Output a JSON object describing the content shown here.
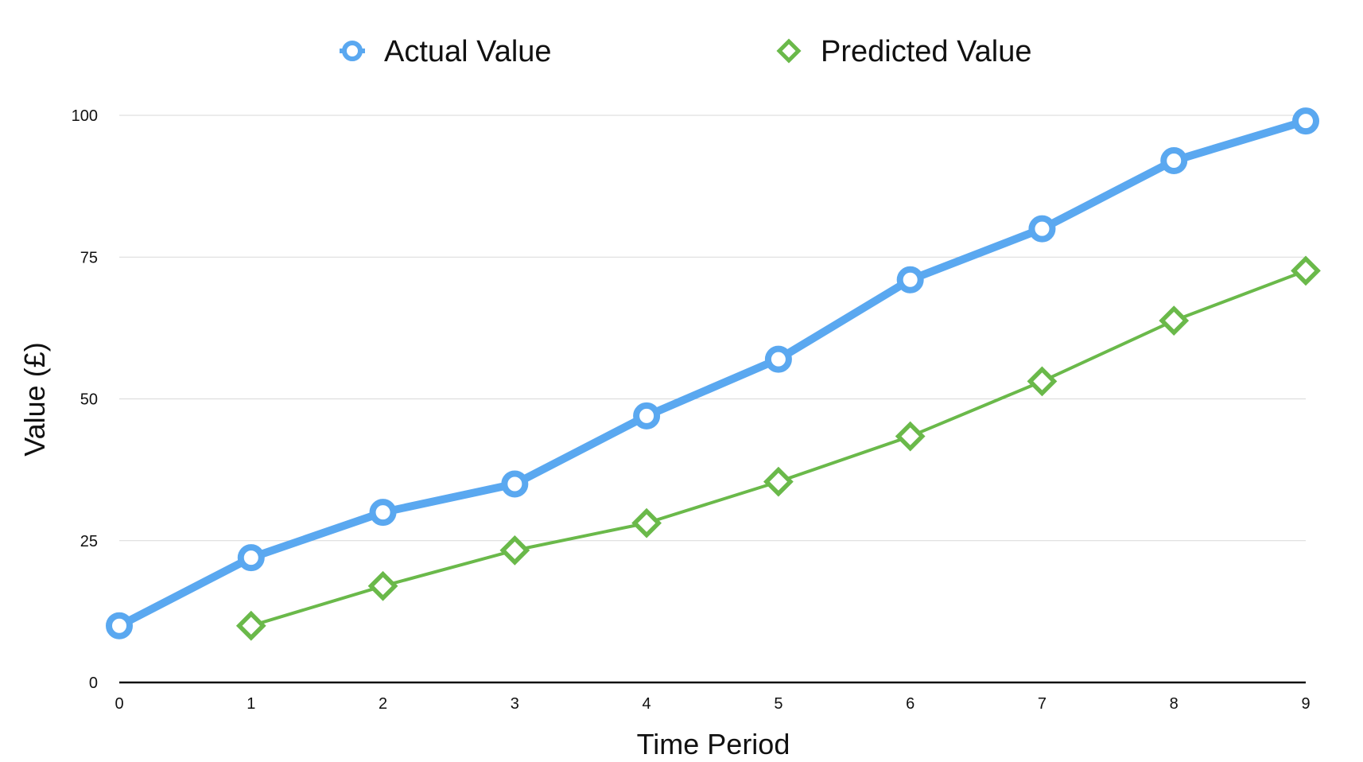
{
  "chart_data": {
    "type": "line",
    "x": [
      0,
      1,
      2,
      3,
      4,
      5,
      6,
      7,
      8,
      9
    ],
    "xlabel": "Time Period",
    "ylabel": "Value (£)",
    "ylim": [
      0,
      100
    ],
    "xlim": [
      0,
      9
    ],
    "yticks": [
      0,
      25,
      50,
      75,
      100
    ],
    "xticks": [
      0,
      1,
      2,
      3,
      4,
      5,
      6,
      7,
      8,
      9
    ],
    "grid": true,
    "legend_position": "top-center",
    "series": [
      {
        "name": "Actual Value",
        "color": "#5aa8f0",
        "marker": "circle",
        "x": [
          0,
          1,
          2,
          3,
          4,
          5,
          6,
          7,
          8,
          9
        ],
        "values": [
          10,
          22,
          30,
          35,
          47,
          57,
          71,
          80,
          92,
          99
        ]
      },
      {
        "name": "Predicted Value",
        "color": "#6ab94a",
        "marker": "diamond",
        "x": [
          1,
          2,
          3,
          4,
          5,
          6,
          7,
          8,
          9
        ],
        "values": [
          10,
          17,
          23.3,
          28.1,
          35.4,
          43.4,
          53.1,
          63.8,
          72.6
        ]
      }
    ]
  }
}
